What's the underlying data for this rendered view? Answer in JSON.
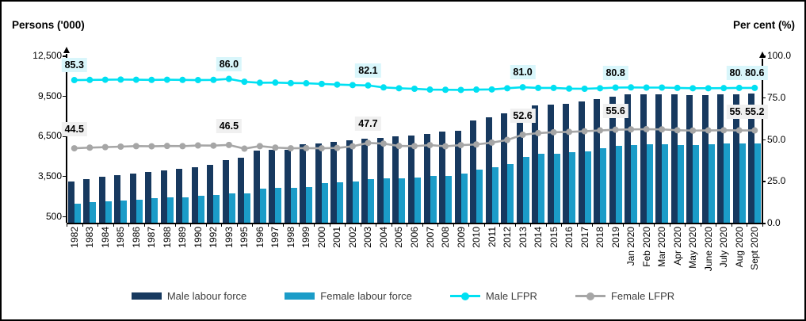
{
  "chart_data": {
    "type": "combo-bar-line",
    "title": "",
    "categories": [
      "1982",
      "1983",
      "1984",
      "1985",
      "1986",
      "1987",
      "1988",
      "1989",
      "1990",
      "1992",
      "1993",
      "1995",
      "1996",
      "1997",
      "1998",
      "1999",
      "2000",
      "2001",
      "2002",
      "2003",
      "2004",
      "2005",
      "2006",
      "2007",
      "2008",
      "2009",
      "2010",
      "2011",
      "2012",
      "2013",
      "2014",
      "2015",
      "2016",
      "2017",
      "2018",
      "2019",
      "Jan 2020",
      "Feb 2020",
      "Mar 2020",
      "Apr 2020",
      "May 2020",
      "June 2020",
      "July 2020",
      "Aug 2020",
      "Sept 2020"
    ],
    "left_axis": {
      "title": "Persons ('000)",
      "min": 0,
      "max": 12500,
      "tick_values": [
        500,
        3500,
        6500,
        9500,
        12500
      ],
      "tick_labels": [
        "500",
        "3,500",
        "6,500",
        "9,500",
        "12,500"
      ]
    },
    "right_axis": {
      "title": "Per cent (%)",
      "min": 0,
      "max": 100,
      "tick_values": [
        0,
        25,
        50,
        75,
        100
      ],
      "tick_labels": [
        "0.0",
        "25.0",
        "50.0",
        "75.0",
        "100.0"
      ]
    },
    "legend_position": "bottom",
    "series": [
      {
        "name": "Male labour force",
        "type": "bar",
        "axis": "left",
        "color": "#17395F",
        "values": [
          3100,
          3270,
          3430,
          3550,
          3660,
          3790,
          3910,
          4030,
          4150,
          4300,
          4660,
          4850,
          5400,
          5430,
          5450,
          5840,
          5950,
          6050,
          6150,
          6270,
          6330,
          6430,
          6540,
          6660,
          6800,
          6900,
          7650,
          7850,
          8150,
          8550,
          8750,
          8830,
          8890,
          9080,
          9220,
          9430,
          9570,
          9600,
          9600,
          9570,
          9520,
          9520,
          9570,
          9600,
          9660
        ]
      },
      {
        "name": "Female labour force",
        "type": "bar",
        "axis": "left",
        "color": "#1B9CC8",
        "values": [
          1430,
          1530,
          1570,
          1630,
          1730,
          1830,
          1920,
          1920,
          2020,
          2080,
          2180,
          2200,
          2550,
          2620,
          2580,
          2650,
          2950,
          3000,
          3080,
          3250,
          3290,
          3290,
          3370,
          3510,
          3510,
          3670,
          3950,
          4150,
          4400,
          4900,
          5140,
          5160,
          5300,
          5360,
          5540,
          5760,
          5830,
          5890,
          5890,
          5830,
          5790,
          5890,
          5950,
          5950,
          5950
        ]
      },
      {
        "name": "Male LFPR",
        "type": "line",
        "axis": "right",
        "color": "#00E0F2",
        "label_bg": "#D9F6FB",
        "values": [
          85.3,
          85.4,
          85.5,
          85.6,
          85.5,
          85.4,
          85.5,
          85.4,
          85.3,
          85.4,
          86.0,
          84.3,
          83.7,
          83.8,
          83.5,
          83.4,
          83.0,
          82.6,
          82.3,
          82.1,
          80.9,
          80.4,
          80.1,
          79.6,
          79.5,
          79.4,
          79.6,
          79.7,
          80.4,
          81.0,
          80.6,
          80.6,
          80.2,
          80.1,
          80.4,
          80.8,
          80.9,
          80.8,
          80.8,
          80.6,
          80.4,
          80.4,
          80.5,
          80.6,
          80.6
        ],
        "labeled_points": {
          "indices": [
            0,
            10,
            19,
            29,
            35,
            43,
            44
          ],
          "labels": [
            "85.3",
            "86.0",
            "82.1",
            "81.0",
            "80.8",
            "80.6",
            "80.6"
          ]
        }
      },
      {
        "name": "Female LFPR",
        "type": "line",
        "axis": "right",
        "color": "#A6A6A6",
        "label_bg": "#F0F0F0",
        "values": [
          44.5,
          44.9,
          45.2,
          45.5,
          45.8,
          45.7,
          45.9,
          45.8,
          46.2,
          46.1,
          46.5,
          44.3,
          45.8,
          44.9,
          44.5,
          44.6,
          44.5,
          44.7,
          45.7,
          47.7,
          47.3,
          45.9,
          45.8,
          46.4,
          45.7,
          46.4,
          46.8,
          47.9,
          49.5,
          52.6,
          53.6,
          54.1,
          54.3,
          54.7,
          55.2,
          55.6,
          55.8,
          55.9,
          55.8,
          55.3,
          55.1,
          55.2,
          55.3,
          55.2,
          55.2
        ],
        "labeled_points": {
          "indices": [
            0,
            10,
            19,
            29,
            35,
            43,
            44
          ],
          "labels": [
            "44.5",
            "46.5",
            "47.7",
            "52.6",
            "55.6",
            "55.2",
            "55.2"
          ]
        }
      }
    ]
  }
}
